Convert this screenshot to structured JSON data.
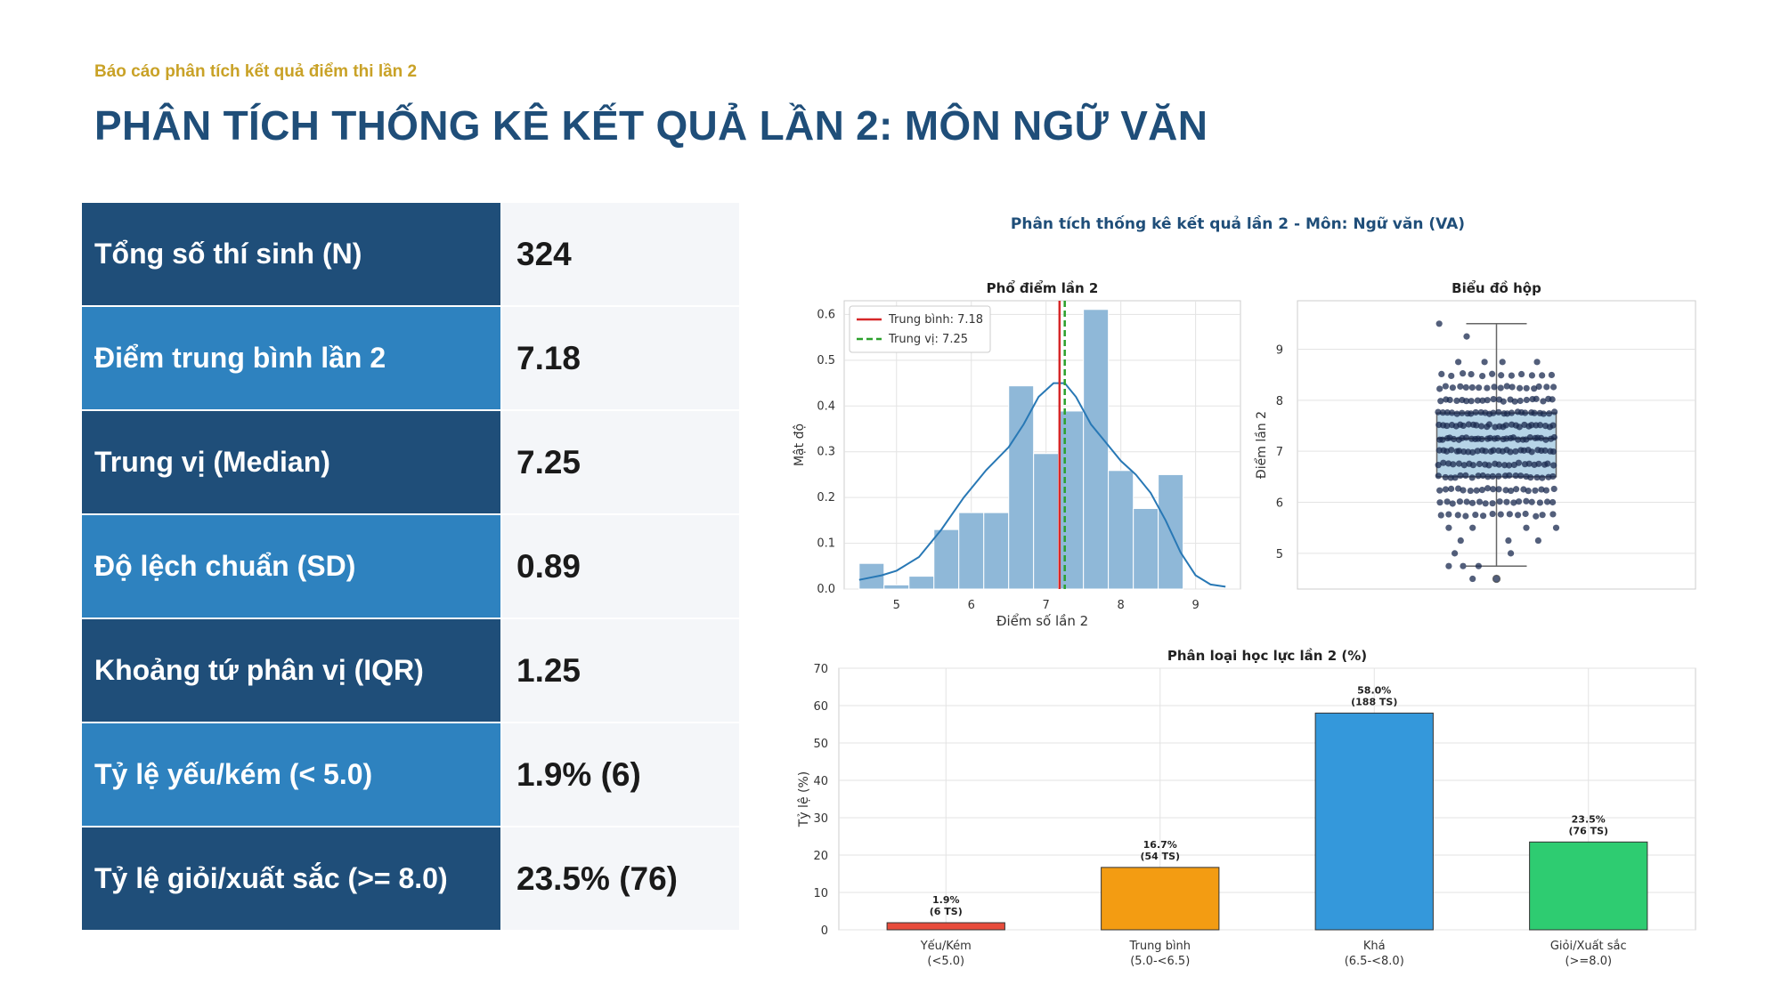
{
  "header": {
    "subtitle": "Báo cáo phân tích kết quả điểm thi lần 2",
    "title": "PHÂN TÍCH THỐNG KÊ KẾT QUẢ LẦN 2: MÔN NGỮ VĂN"
  },
  "stats": [
    {
      "label": "Tổng số thí sinh (N)",
      "value": "324"
    },
    {
      "label": "Điểm trung bình lần 2",
      "value": "7.18"
    },
    {
      "label": "Trung vị (Median)",
      "value": "7.25"
    },
    {
      "label": "Độ lệch chuẩn (SD)",
      "value": "0.89"
    },
    {
      "label": "Khoảng tứ phân vị (IQR)",
      "value": "1.25"
    },
    {
      "label": "Tỷ lệ yếu/kém (< 5.0)",
      "value": "1.9% (6)"
    },
    {
      "label": "Tỷ lệ giỏi/xuất sắc (>= 8.0)",
      "value": "23.5% (76)"
    }
  ],
  "colors": {
    "dark_row": "#1f4e79",
    "light_row": "#2e82bf",
    "accent": "#c9a227"
  },
  "chart_data": [
    {
      "type": "histogram",
      "suptitle": "Phân tích thống kê kết quả lần 2 - Môn: Ngữ văn (VA)",
      "title": "Phổ điểm lần 2",
      "xlabel": "Điểm số lần 2",
      "ylabel": "Mật độ",
      "xlim": [
        4.3,
        9.6
      ],
      "ylim": [
        0,
        0.63
      ],
      "xticks": [
        5,
        6,
        7,
        8,
        9
      ],
      "yticks": [
        0.0,
        0.1,
        0.2,
        0.3,
        0.4,
        0.5,
        0.6
      ],
      "bins": [
        {
          "x0": 4.5,
          "x1": 4.833,
          "density": 0.056
        },
        {
          "x0": 4.833,
          "x1": 5.167,
          "density": 0.009
        },
        {
          "x0": 5.167,
          "x1": 5.5,
          "density": 0.028
        },
        {
          "x0": 5.5,
          "x1": 5.833,
          "density": 0.13
        },
        {
          "x0": 5.833,
          "x1": 6.167,
          "density": 0.167
        },
        {
          "x0": 6.167,
          "x1": 6.5,
          "density": 0.167
        },
        {
          "x0": 6.5,
          "x1": 6.833,
          "density": 0.444
        },
        {
          "x0": 6.833,
          "x1": 7.167,
          "density": 0.296
        },
        {
          "x0": 7.167,
          "x1": 7.5,
          "density": 0.389
        },
        {
          "x0": 7.5,
          "x1": 7.833,
          "density": 0.611
        },
        {
          "x0": 7.833,
          "x1": 8.167,
          "density": 0.259
        },
        {
          "x0": 8.167,
          "x1": 8.5,
          "density": 0.176
        },
        {
          "x0": 8.5,
          "x1": 8.833,
          "density": 0.25
        }
      ],
      "kde": [
        [
          4.5,
          0.02
        ],
        [
          4.8,
          0.03
        ],
        [
          5.0,
          0.04
        ],
        [
          5.3,
          0.07
        ],
        [
          5.6,
          0.13
        ],
        [
          5.9,
          0.2
        ],
        [
          6.2,
          0.26
        ],
        [
          6.5,
          0.31
        ],
        [
          6.7,
          0.36
        ],
        [
          6.9,
          0.42
        ],
        [
          7.1,
          0.45
        ],
        [
          7.25,
          0.45
        ],
        [
          7.4,
          0.42
        ],
        [
          7.6,
          0.36
        ],
        [
          7.8,
          0.32
        ],
        [
          8.0,
          0.28
        ],
        [
          8.2,
          0.25
        ],
        [
          8.4,
          0.21
        ],
        [
          8.6,
          0.15
        ],
        [
          8.8,
          0.08
        ],
        [
          9.0,
          0.03
        ],
        [
          9.2,
          0.01
        ],
        [
          9.4,
          0.005
        ]
      ],
      "mean": 7.18,
      "median": 7.25,
      "legend": [
        "Trung bình: 7.18",
        "Trung vị: 7.25"
      ],
      "legend_position": "top-left",
      "grid": true,
      "colors": {
        "bars": "#8fb8d8",
        "kde": "#2878b5",
        "mean": "#d62728",
        "median": "#2ca02c"
      }
    },
    {
      "type": "box",
      "title": "Biểu đồ hộp",
      "ylabel": "Điểm lần 2",
      "ylim": [
        4.3,
        9.95
      ],
      "yticks": [
        5,
        6,
        7,
        8,
        9
      ],
      "q1": 6.5,
      "median": 7.25,
      "q3": 7.75,
      "whisker_low": 4.75,
      "whisker_high": 9.5,
      "outliers": [
        4.5
      ],
      "strip_points": [
        [
          -0.48,
          9.5
        ],
        [
          -0.25,
          9.25
        ],
        [
          -0.1,
          8.75
        ],
        [
          0.05,
          8.75
        ],
        [
          -0.32,
          8.75
        ],
        [
          0.34,
          8.75
        ],
        [
          -0.4,
          4.75
        ],
        [
          -0.28,
          4.75
        ],
        [
          -0.15,
          4.75
        ],
        [
          -0.2,
          4.5
        ],
        [
          0.0,
          4.5
        ],
        [
          -0.35,
          5.0
        ],
        [
          0.12,
          5.0
        ],
        [
          -0.3,
          5.25
        ],
        [
          0.1,
          5.25
        ],
        [
          0.35,
          5.25
        ],
        [
          -0.4,
          5.5
        ],
        [
          -0.2,
          5.5
        ],
        [
          0.25,
          5.5
        ],
        [
          0.5,
          5.5
        ]
      ],
      "strip_rows": [
        {
          "y": 5.75,
          "n": 14
        },
        {
          "y": 6.0,
          "n": 18
        },
        {
          "y": 6.25,
          "n": 20
        },
        {
          "y": 6.5,
          "n": 22
        },
        {
          "y": 6.75,
          "n": 24
        },
        {
          "y": 7.0,
          "n": 28
        },
        {
          "y": 7.25,
          "n": 30
        },
        {
          "y": 7.5,
          "n": 28
        },
        {
          "y": 7.75,
          "n": 26
        },
        {
          "y": 8.0,
          "n": 22
        },
        {
          "y": 8.25,
          "n": 18
        },
        {
          "y": 8.5,
          "n": 12
        }
      ],
      "grid": true,
      "colors": {
        "box": "#a9cce3",
        "points": "#1a2a4f"
      }
    },
    {
      "type": "bar",
      "title": "Phân loại học lực lần 2 (%)",
      "ylabel": "Tỷ lệ (%)",
      "ylim": [
        0,
        70
      ],
      "yticks": [
        0,
        10,
        20,
        30,
        40,
        50,
        60,
        70
      ],
      "categories": [
        {
          "line1": "Yếu/Kém",
          "line2": "(<5.0)"
        },
        {
          "line1": "Trung bình",
          "line2": "(5.0-<6.5)"
        },
        {
          "line1": "Khá",
          "line2": "(6.5-<8.0)"
        },
        {
          "line1": "Giỏi/Xuất sắc",
          "line2": "(>=8.0)"
        }
      ],
      "values": [
        1.9,
        16.7,
        58.0,
        23.5
      ],
      "labels": [
        {
          "pct": "1.9%",
          "count": "(6 TS)"
        },
        {
          "pct": "16.7%",
          "count": "(54 TS)"
        },
        {
          "pct": "58.0%",
          "count": "(188 TS)"
        },
        {
          "pct": "23.5%",
          "count": "(76 TS)"
        }
      ],
      "colors": [
        "#e74c3c",
        "#f39c12",
        "#3498db",
        "#2ecc71"
      ],
      "grid": true
    }
  ]
}
